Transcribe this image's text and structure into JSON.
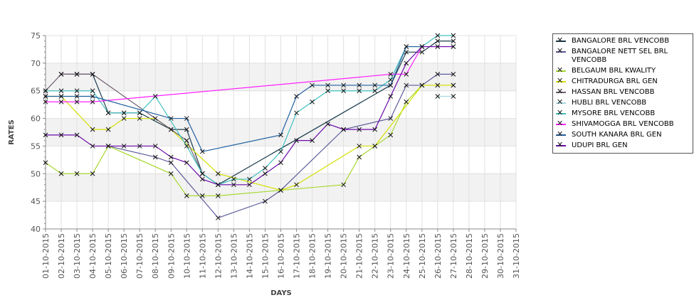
{
  "chart_data": {
    "type": "line",
    "title": "",
    "xlabel": "DAYS",
    "ylabel": "RATES",
    "ylim": [
      40,
      75
    ],
    "yticks": [
      "40",
      "45",
      "50",
      "55",
      "60",
      "65",
      "70",
      "75"
    ],
    "legend_position": "right",
    "x": [
      "01-10-2015",
      "02-10-2015",
      "03-10-2015",
      "04-10-2015",
      "05-10-2015",
      "06-10-2015",
      "07-10-2015",
      "08-10-2015",
      "09-10-2015",
      "10-10-2015",
      "11-10-2015",
      "12-10-2015",
      "13-10-2015",
      "14-10-2015",
      "15-10-2015",
      "16-10-2015",
      "17-10-2015",
      "18-10-2015",
      "19-10-2015",
      "20-10-2015",
      "21-10-2015",
      "22-10-2015",
      "23-10-2015",
      "24-10-2015",
      "25-10-2015",
      "26-10-2015",
      "27-10-2015",
      "28-10-2015",
      "29-10-2015",
      "30-10-2015",
      "31-10-2015"
    ],
    "series": [
      {
        "name": "BANGALORE BRL VENCOBB",
        "color": "#1c3d4f",
        "values": [
          null,
          68,
          68,
          68,
          61,
          61,
          61,
          null,
          58,
          58,
          50,
          48,
          null,
          null,
          null,
          null,
          null,
          null,
          null,
          null,
          null,
          null,
          66,
          72,
          72,
          74,
          74,
          null,
          null,
          null,
          null
        ]
      },
      {
        "name": "BANGALORE NETT SEL BRL VENCOBB",
        "color": "#5c5a9a",
        "values": [
          null,
          null,
          null,
          null,
          55,
          null,
          null,
          53,
          52,
          null,
          null,
          42,
          null,
          null,
          45,
          47,
          null,
          null,
          null,
          58,
          null,
          null,
          60,
          66,
          66,
          68,
          68,
          null,
          null,
          null,
          null
        ]
      },
      {
        "name": "BELGAUM BRL KWALITY",
        "color": "#a8d830",
        "values": [
          52,
          50,
          50,
          50,
          55,
          null,
          null,
          null,
          50,
          46,
          46,
          46,
          null,
          null,
          null,
          null,
          null,
          null,
          null,
          48,
          53,
          55,
          57,
          63,
          66,
          66,
          66,
          null,
          null,
          null,
          null
        ]
      },
      {
        "name": "CHITRADURGA BRL GEN",
        "color": "#d4e000",
        "values": [
          64,
          64,
          null,
          58,
          58,
          60,
          60,
          60,
          58,
          null,
          null,
          50,
          null,
          null,
          null,
          47,
          48,
          null,
          null,
          null,
          55,
          55,
          null,
          null,
          66,
          66,
          66,
          null,
          null,
          null,
          null
        ]
      },
      {
        "name": "HASSAN BRL VENCOBB",
        "color": "#706070",
        "values": [
          65,
          68,
          68,
          68,
          null,
          null,
          null,
          null,
          null,
          56,
          50,
          null,
          null,
          null,
          null,
          null,
          null,
          null,
          null,
          null,
          null,
          null,
          null,
          null,
          null,
          null,
          null,
          null,
          null,
          null,
          null
        ]
      },
      {
        "name": "HUBLI BRL VENCOBB",
        "color": "#a8d8e0",
        "values": [
          null,
          null,
          null,
          null,
          null,
          null,
          null,
          null,
          null,
          null,
          null,
          null,
          null,
          null,
          null,
          null,
          null,
          null,
          null,
          null,
          null,
          null,
          null,
          null,
          null,
          64,
          64,
          null,
          null,
          null,
          null
        ]
      },
      {
        "name": "MYSORE BRL VENCOBB",
        "color": "#40c0c0",
        "values": [
          65,
          65,
          65,
          65,
          61,
          61,
          61,
          64,
          null,
          55,
          50,
          48,
          49,
          49,
          51,
          54,
          61,
          63,
          65,
          65,
          65,
          65,
          67,
          73,
          73,
          75,
          75,
          null,
          null,
          null,
          null
        ]
      },
      {
        "name": "SHIVAMOGGA BRL VENCOBB",
        "color": "#ff20ff",
        "values": [
          63,
          63,
          63,
          63,
          null,
          null,
          null,
          null,
          null,
          null,
          null,
          null,
          null,
          null,
          null,
          null,
          null,
          null,
          null,
          null,
          null,
          null,
          68,
          68,
          73,
          73,
          73,
          null,
          null,
          null,
          null
        ]
      },
      {
        "name": "SOUTH KANARA BRL GEN",
        "color": "#2060a0",
        "values": [
          64,
          64,
          64,
          64,
          null,
          null,
          null,
          null,
          60,
          60,
          54,
          null,
          null,
          null,
          null,
          57,
          64,
          66,
          66,
          66,
          66,
          66,
          66,
          73,
          73,
          null,
          null,
          null,
          null,
          null,
          null
        ]
      },
      {
        "name": "UDUPI BRL GEN",
        "color": "#6a0aa8",
        "values": [
          57,
          57,
          57,
          55,
          55,
          55,
          55,
          55,
          53,
          52,
          49,
          48,
          48,
          48,
          50,
          52,
          56,
          56,
          59,
          58,
          58,
          58,
          64,
          70,
          73,
          73,
          73,
          null,
          null,
          null,
          null
        ]
      }
    ]
  }
}
